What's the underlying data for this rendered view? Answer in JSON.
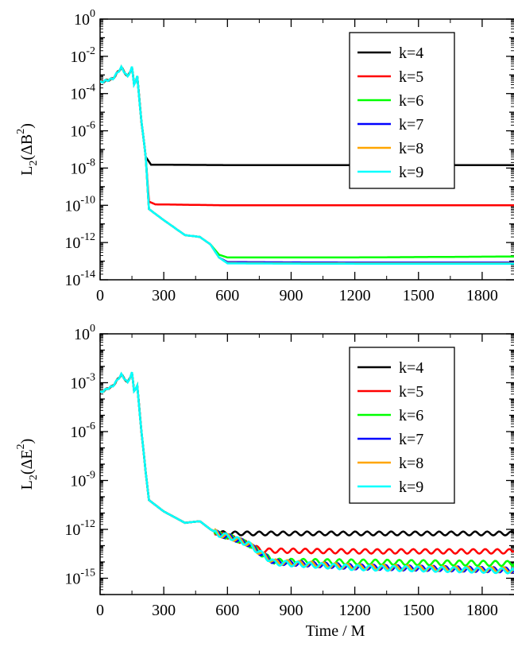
{
  "chart_data": [
    {
      "type": "line",
      "ylabel": "L2(ΔB2)",
      "ylabel_parts": {
        "base": "L",
        "sub": "2",
        "mid": "(ΔB",
        "sup": "2",
        "end": ")"
      },
      "xlabel": "",
      "yscale": "log",
      "xlim": [
        0,
        1950
      ],
      "ylim": [
        1e-14,
        1
      ],
      "x_ticks": [
        0,
        300,
        600,
        900,
        1200,
        1500,
        1800
      ],
      "x_tick_labels": [
        "0",
        "300",
        "600",
        "900",
        "1200",
        "1500",
        "1800"
      ],
      "y_ticks": [
        {
          "base": "10",
          "exp": "0"
        },
        {
          "base": "10",
          "exp": "-2"
        },
        {
          "base": "10",
          "exp": "-4"
        },
        {
          "base": "10",
          "exp": "-6"
        },
        {
          "base": "10",
          "exp": "-8"
        },
        {
          "base": "10",
          "exp": "-10"
        },
        {
          "base": "10",
          "exp": "-12"
        },
        {
          "base": "10",
          "exp": "-14"
        }
      ],
      "legend": "top-right",
      "series": [
        {
          "name": "k=4",
          "color": "#000000",
          "x": [
            0,
            60,
            100,
            130,
            150,
            160,
            175,
            195,
            215,
            240,
            600,
            1200,
            1950
          ],
          "y": [
            -3.4,
            -3.2,
            -2.6,
            -3.1,
            -2.6,
            -3.5,
            -3.1,
            -5.5,
            -7.4,
            -7.82,
            -7.84,
            -7.84,
            -7.84
          ]
        },
        {
          "name": "k=5",
          "color": "#ff0000",
          "x": [
            0,
            60,
            100,
            130,
            150,
            160,
            175,
            195,
            215,
            230,
            260,
            600,
            1200,
            1950
          ],
          "y": [
            -3.4,
            -3.2,
            -2.6,
            -3.1,
            -2.6,
            -3.5,
            -3.1,
            -5.5,
            -7.4,
            -9.8,
            -9.95,
            -10.0,
            -10.0,
            -10.0
          ]
        },
        {
          "name": "k=6",
          "color": "#00ff00",
          "x": [
            0,
            60,
            100,
            130,
            150,
            160,
            175,
            195,
            215,
            230,
            300,
            400,
            470,
            520,
            560,
            600,
            1200,
            1950
          ],
          "y": [
            -3.4,
            -3.2,
            -2.6,
            -3.1,
            -2.6,
            -3.5,
            -3.1,
            -5.5,
            -7.4,
            -10.2,
            -10.8,
            -11.6,
            -11.7,
            -12.1,
            -12.65,
            -12.8,
            -12.8,
            -12.75
          ]
        },
        {
          "name": "k=7",
          "color": "#0000ff",
          "x": [
            0,
            60,
            100,
            130,
            150,
            160,
            175,
            195,
            215,
            230,
            300,
            400,
            470,
            520,
            560,
            600,
            1200,
            1950
          ],
          "y": [
            -3.4,
            -3.2,
            -2.6,
            -3.1,
            -2.6,
            -3.5,
            -3.1,
            -5.5,
            -7.4,
            -10.2,
            -10.8,
            -11.6,
            -11.7,
            -12.1,
            -12.8,
            -13.05,
            -13.08,
            -13.08
          ]
        },
        {
          "name": "k=8",
          "color": "#ffa500",
          "x": [
            0,
            60,
            100,
            130,
            150,
            160,
            175,
            195,
            215,
            230,
            300,
            400,
            470,
            520,
            560,
            600,
            1200,
            1950
          ],
          "y": [
            -3.4,
            -3.2,
            -2.6,
            -3.1,
            -2.6,
            -3.5,
            -3.1,
            -5.5,
            -7.4,
            -10.2,
            -10.8,
            -11.6,
            -11.7,
            -12.1,
            -12.8,
            -13.1,
            -13.12,
            -13.12
          ]
        },
        {
          "name": "k=9",
          "color": "#00ffff",
          "x": [
            0,
            60,
            100,
            130,
            150,
            160,
            175,
            195,
            215,
            230,
            300,
            400,
            470,
            520,
            560,
            600,
            1200,
            1950
          ],
          "y": [
            -3.4,
            -3.2,
            -2.6,
            -3.1,
            -2.6,
            -3.5,
            -3.1,
            -5.5,
            -7.4,
            -10.2,
            -10.8,
            -11.6,
            -11.7,
            -12.1,
            -12.8,
            -13.12,
            -13.14,
            -13.14
          ]
        }
      ]
    },
    {
      "type": "line",
      "ylabel": "L2(ΔE2)",
      "ylabel_parts": {
        "base": "L",
        "sub": "2",
        "mid": "(ΔE",
        "sup": "2",
        "end": ")"
      },
      "xlabel": "Time / M",
      "yscale": "log",
      "xlim": [
        0,
        1950
      ],
      "ylim": [
        1e-16,
        1
      ],
      "x_ticks": [
        0,
        300,
        600,
        900,
        1200,
        1500,
        1800
      ],
      "x_tick_labels": [
        "0",
        "300",
        "600",
        "900",
        "1200",
        "1500",
        "1800"
      ],
      "y_ticks": [
        {
          "base": "10",
          "exp": "0"
        },
        {
          "base": "10",
          "exp": "-3"
        },
        {
          "base": "10",
          "exp": "-6"
        },
        {
          "base": "10",
          "exp": "-9"
        },
        {
          "base": "10",
          "exp": "-12"
        },
        {
          "base": "10",
          "exp": "-15"
        }
      ],
      "legend": "top-right",
      "series": [
        {
          "name": "k=4",
          "color": "#000000",
          "x": [
            0,
            60,
            100,
            130,
            150,
            160,
            175,
            195,
            215,
            230,
            300,
            400,
            470,
            520,
            550,
            600,
            1200,
            1950
          ],
          "y": [
            -3.6,
            -3.2,
            -2.5,
            -3.0,
            -2.4,
            -3.5,
            -3.2,
            -6.0,
            -8.5,
            -10.2,
            -10.9,
            -11.6,
            -11.5,
            -12.0,
            -12.2,
            -12.25,
            -12.25,
            -12.25
          ]
        },
        {
          "name": "k=5",
          "color": "#ff0000",
          "x": [
            0,
            60,
            100,
            130,
            150,
            160,
            175,
            195,
            215,
            230,
            300,
            400,
            470,
            520,
            560,
            620,
            700,
            760,
            1200,
            1950
          ],
          "y": [
            -3.6,
            -3.2,
            -2.5,
            -3.0,
            -2.4,
            -3.5,
            -3.2,
            -6.0,
            -8.5,
            -10.2,
            -10.9,
            -11.6,
            -11.5,
            -12.0,
            -12.3,
            -12.5,
            -12.9,
            -13.3,
            -13.35,
            -13.35
          ]
        },
        {
          "name": "k=6",
          "color": "#00ff00",
          "x": [
            0,
            60,
            100,
            130,
            150,
            160,
            175,
            195,
            215,
            230,
            300,
            400,
            470,
            520,
            560,
            620,
            700,
            760,
            820,
            1200,
            1950
          ],
          "y": [
            -3.6,
            -3.2,
            -2.5,
            -3.0,
            -2.4,
            -3.5,
            -3.2,
            -6.0,
            -8.5,
            -10.2,
            -10.9,
            -11.6,
            -11.5,
            -12.0,
            -12.3,
            -12.5,
            -12.9,
            -13.5,
            -13.95,
            -14.0,
            -14.1
          ]
        },
        {
          "name": "k=7",
          "color": "#0000ff",
          "x": [
            0,
            60,
            100,
            130,
            150,
            160,
            175,
            195,
            215,
            230,
            300,
            400,
            470,
            520,
            560,
            620,
            700,
            760,
            820,
            1200,
            1950
          ],
          "y": [
            -3.6,
            -3.2,
            -2.5,
            -3.0,
            -2.4,
            -3.5,
            -3.2,
            -6.0,
            -8.5,
            -10.2,
            -10.9,
            -11.6,
            -11.5,
            -12.0,
            -12.3,
            -12.5,
            -12.9,
            -13.5,
            -14.0,
            -14.3,
            -14.5
          ]
        },
        {
          "name": "k=8",
          "color": "#ffa500",
          "x": [
            0,
            60,
            100,
            130,
            150,
            160,
            175,
            195,
            215,
            230,
            300,
            400,
            470,
            520,
            560,
            620,
            700,
            760,
            820,
            1200,
            1950
          ],
          "y": [
            -3.6,
            -3.2,
            -2.5,
            -3.0,
            -2.4,
            -3.5,
            -3.2,
            -6.0,
            -8.5,
            -10.2,
            -10.9,
            -11.6,
            -11.5,
            -12.0,
            -12.3,
            -12.5,
            -12.9,
            -13.5,
            -14.0,
            -14.3,
            -14.5
          ]
        },
        {
          "name": "k=9",
          "color": "#00ffff",
          "x": [
            0,
            60,
            100,
            130,
            150,
            160,
            175,
            195,
            215,
            230,
            300,
            400,
            470,
            520,
            560,
            620,
            700,
            760,
            820,
            1200,
            1950
          ],
          "y": [
            -3.6,
            -3.2,
            -2.5,
            -3.0,
            -2.4,
            -3.5,
            -3.2,
            -6.0,
            -8.5,
            -10.2,
            -10.9,
            -11.6,
            -11.5,
            -12.0,
            -12.3,
            -12.5,
            -12.9,
            -13.5,
            -14.05,
            -14.35,
            -14.55
          ]
        }
      ]
    }
  ]
}
